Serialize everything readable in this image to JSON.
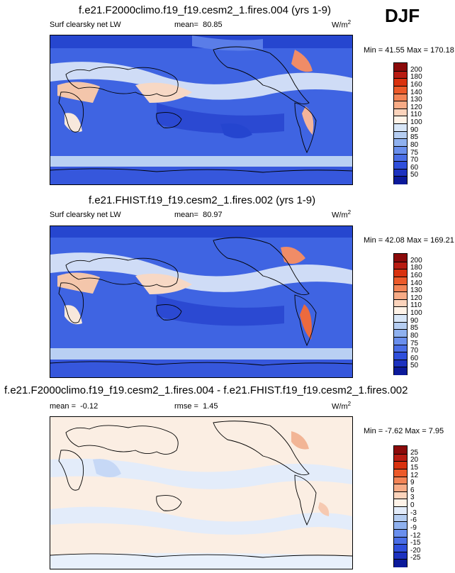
{
  "season": "DJF",
  "panels": [
    {
      "title": "f.e21.F2000climo.f19_f19.cesm2_1.fires.004 (yrs 1-9)",
      "variable": "Surf clearsky net LW",
      "stat1_label": "mean=",
      "stat1_value": "80.85",
      "stat2_label": "",
      "stat2_value": "",
      "units": "W/m",
      "units_sup": "2",
      "minmax": "Min = 41.55 Max = 170.18",
      "colorbar_ticks": [
        "200",
        "180",
        "160",
        "140",
        "130",
        "120",
        "110",
        "100",
        "90",
        "85",
        "80",
        "75",
        "70",
        "60",
        "50"
      ],
      "colorbar_colors": [
        "#8b0a0a",
        "#b81c12",
        "#d9320f",
        "#ec5a2a",
        "#f38456",
        "#f7ab86",
        "#fbd3bb",
        "#fff3e8",
        "#d8e6f7",
        "#b5cdf1",
        "#8fb1ef",
        "#6a8fed",
        "#4a6ee6",
        "#2f4fdc",
        "#1d32c0",
        "#0c1a9a"
      ]
    },
    {
      "title": "f.e21.FHIST.f19_f19.cesm2_1.fires.002 (yrs 1-9)",
      "variable": "Surf clearsky net LW",
      "stat1_label": "mean=",
      "stat1_value": "80.97",
      "stat2_label": "",
      "stat2_value": "",
      "units": "W/m",
      "units_sup": "2",
      "minmax": "Min = 42.08 Max = 169.21",
      "colorbar_ticks": [
        "200",
        "180",
        "160",
        "140",
        "130",
        "120",
        "110",
        "100",
        "90",
        "85",
        "80",
        "75",
        "70",
        "60",
        "50"
      ],
      "colorbar_colors": [
        "#8b0a0a",
        "#b81c12",
        "#d9320f",
        "#ec5a2a",
        "#f38456",
        "#f7ab86",
        "#fbd3bb",
        "#fff3e8",
        "#d8e6f7",
        "#b5cdf1",
        "#8fb1ef",
        "#6a8fed",
        "#4a6ee6",
        "#2f4fdc",
        "#1d32c0",
        "#0c1a9a"
      ]
    },
    {
      "title": "f.e21.F2000climo.f19_f19.cesm2_1.fires.004 - f.e21.FHIST.f19_f19.cesm2_1.fires.002",
      "variable": "",
      "stat1_label": "mean =",
      "stat1_value": "-0.12",
      "stat2_label": "rmse =",
      "stat2_value": "1.45",
      "units": "W/m",
      "units_sup": "2",
      "minmax": "Min = -7.62 Max = 7.95",
      "colorbar_ticks": [
        "25",
        "20",
        "15",
        "12",
        "9",
        "6",
        "3",
        "0",
        "-3",
        "-6",
        "-9",
        "-12",
        "-15",
        "-20",
        "-25"
      ],
      "colorbar_colors": [
        "#8b0a0a",
        "#b81c12",
        "#d9320f",
        "#ec5a2a",
        "#f38456",
        "#f7ab86",
        "#fbd3bb",
        "#fff3e8",
        "#e3ecfa",
        "#b5cdf1",
        "#8fb1ef",
        "#6a8fed",
        "#4a6ee6",
        "#2f4fdc",
        "#1d32c0",
        "#0c1a9a"
      ]
    }
  ]
}
